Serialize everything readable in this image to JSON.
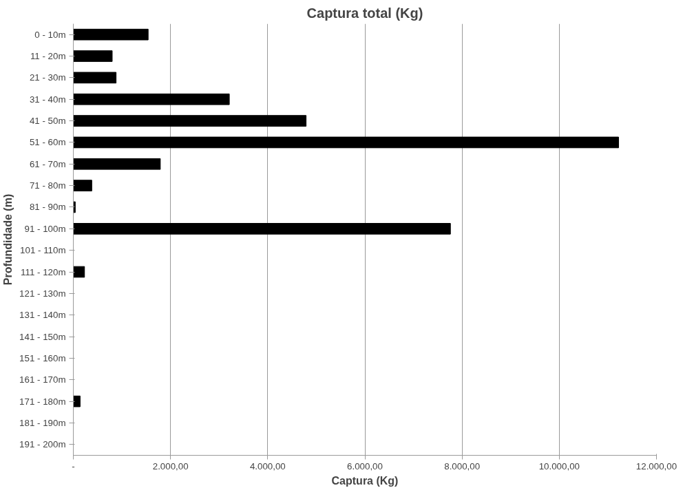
{
  "chart_data": {
    "type": "bar",
    "orientation": "horizontal",
    "title": "Captura total (Kg)",
    "xlabel": "Captura (Kg)",
    "ylabel": "Profundidade (m)",
    "categories": [
      "0 - 10m",
      "11 - 20m",
      "21 - 30m",
      "31 - 40m",
      "41 - 50m",
      "51 - 60m",
      "61 - 70m",
      "71 - 80m",
      "81 - 90m",
      "91 - 100m",
      "101 - 110m",
      "111 - 120m",
      "121 - 130m",
      "131 - 140m",
      "141 - 150m",
      "151 - 160m",
      "161 - 170m",
      "171 - 180m",
      "181 - 190m",
      "191 - 200m"
    ],
    "values": [
      1540,
      800,
      880,
      3210,
      4790,
      11220,
      1790,
      380,
      40,
      7760,
      0,
      230,
      0,
      0,
      0,
      0,
      0,
      140,
      0,
      0
    ],
    "color": "#000000",
    "xlim": [
      0,
      12000
    ],
    "xticks": [
      {
        "value": 0,
        "label": "-"
      },
      {
        "value": 2000,
        "label": "2.000,00"
      },
      {
        "value": 4000,
        "label": "4.000,00"
      },
      {
        "value": 6000,
        "label": "6.000,00"
      },
      {
        "value": 8000,
        "label": "8.000,00"
      },
      {
        "value": 10000,
        "label": "10.000,00"
      },
      {
        "value": 12000,
        "label": "12.000,00"
      }
    ],
    "grid": "x"
  }
}
